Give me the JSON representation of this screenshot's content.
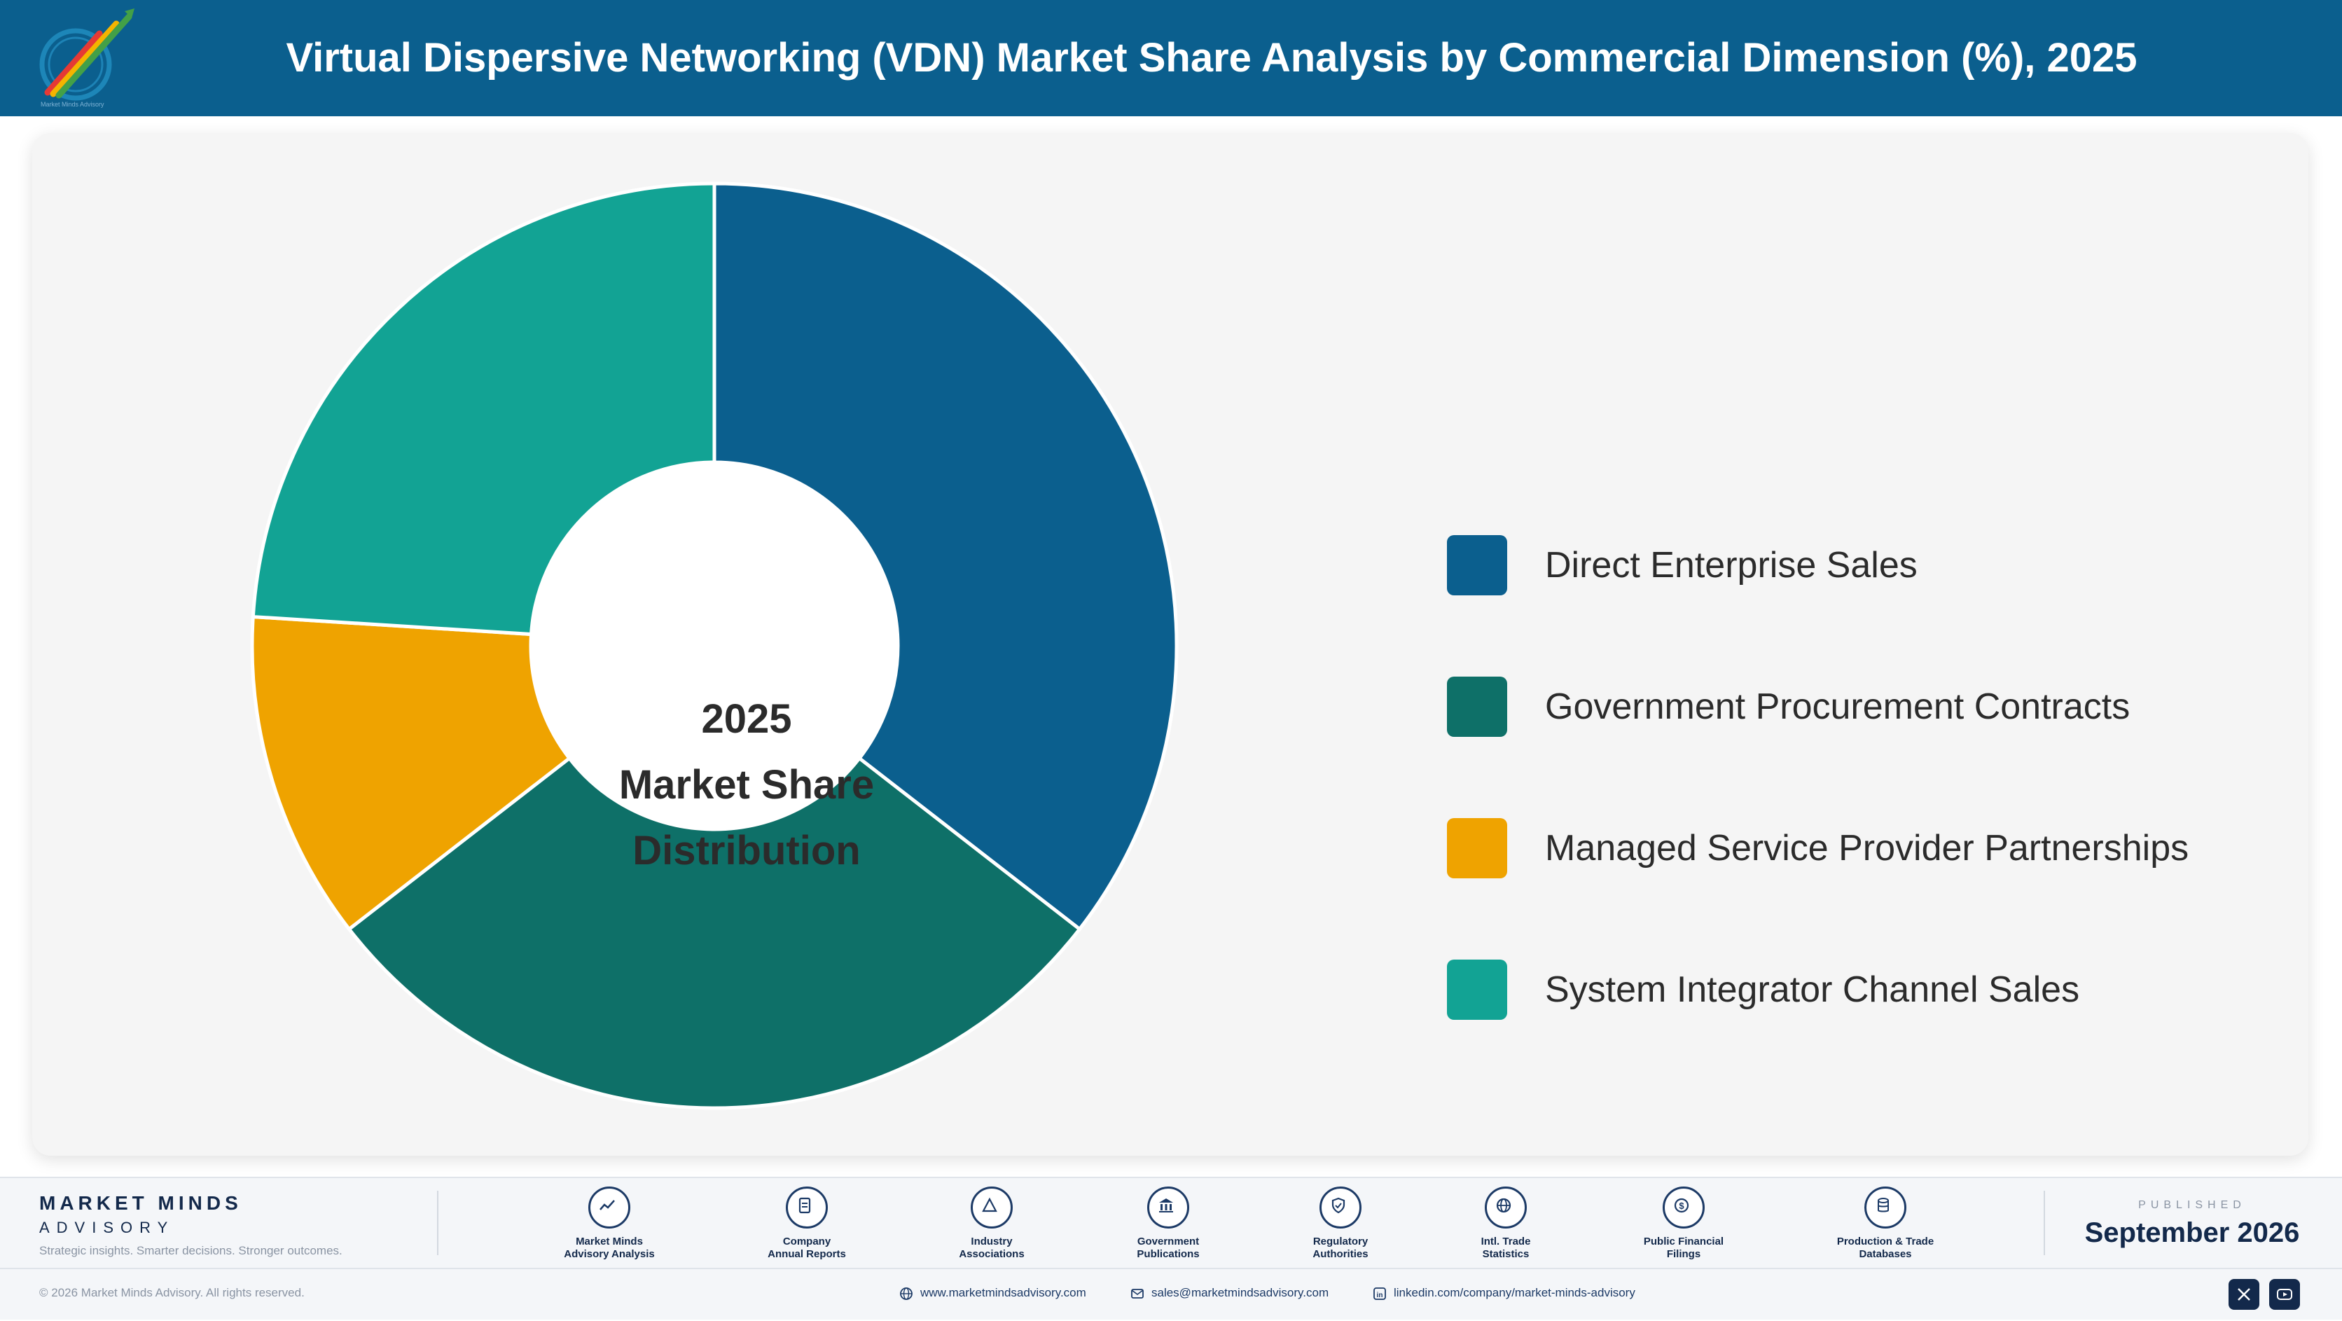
{
  "header": {
    "title": "Virtual Dispersive Networking (VDN) Market Share Analysis by Commercial Dimension (%), 2025",
    "logo_text": "Market Minds Advisory"
  },
  "chart_data": {
    "type": "pie",
    "title": "Virtual Dispersive Networking (VDN) Market Share Analysis by Commercial Dimension (%), 2025",
    "center_label": [
      "2025",
      "Market Share",
      "Distribution"
    ],
    "categories": [
      "Direct Enterprise Sales",
      "Government Procurement Contracts",
      "Managed Service Provider Partnerships",
      "System Integrator Channel Sales"
    ],
    "values": [
      35.5,
      29.0,
      11.5,
      24.0
    ],
    "colors": [
      "#0b5f8e",
      "#0e7068",
      "#efa300",
      "#12a394"
    ],
    "legend_position": "right"
  },
  "footer": {
    "brand_name": "MARKET MINDS",
    "brand_sub": "ADVISORY",
    "tagline": "Strategic insights. Smarter decisions. Stronger outcomes.",
    "sources": [
      {
        "icon": "trend-icon",
        "line1": "Market Minds",
        "line2": "Advisory Analysis"
      },
      {
        "icon": "document-icon",
        "line1": "Company",
        "line2": "Annual Reports"
      },
      {
        "icon": "network-icon",
        "line1": "Industry",
        "line2": "Associations"
      },
      {
        "icon": "building-icon",
        "line1": "Government",
        "line2": "Publications"
      },
      {
        "icon": "shield-icon",
        "line1": "Regulatory",
        "line2": "Authorities"
      },
      {
        "icon": "globe-icon",
        "line1": "Intl. Trade",
        "line2": "Statistics"
      },
      {
        "icon": "coin-icon",
        "line1": "Public Financial",
        "line2": "Filings"
      },
      {
        "icon": "database-icon",
        "line1": "Production & Trade",
        "line2": "Databases"
      }
    ],
    "published_label": "PUBLISHED",
    "published_date": "September 2026",
    "copyright": "© 2026 Market Minds Advisory. All rights reserved.",
    "website": "www.marketmindsadvisory.com",
    "email": "sales@marketmindsadvisory.com",
    "linkedin": "linkedin.com/company/market-minds-advisory"
  }
}
